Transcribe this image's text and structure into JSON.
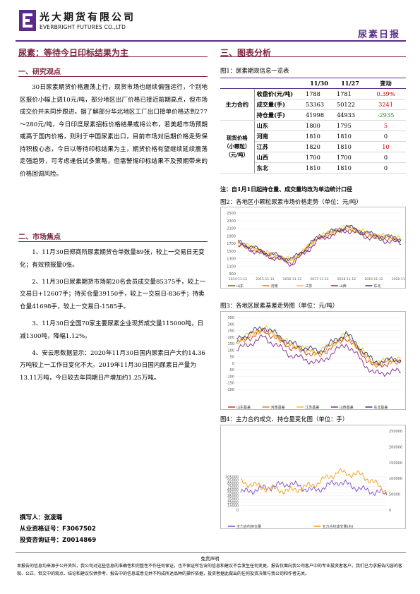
{
  "header": {
    "company_cn": "光大期货有限公司",
    "company_en": "EVERBRIGHT FUTURES CO.,LTD",
    "report_title": "尿素日报"
  },
  "left": {
    "main_title": "尿素：等待今日印标结果为主",
    "research_title": "一、研究观点",
    "research_text": "30日尿素期货价格震荡上行，现货市场也继续偏强运行，个别地区报价小幅上调10元/吨，部分地区出厂价格已接近前期高点，但市场成交价并未同步跟进。据了解部分华北地区工厂出口接单价格达到277～280元/吨，今日印度尿素招标价格结果或将公布，若美超市场预期或高于国内价格，则利于中国尿素出口，目前市场对后期价格走势保持积极心态，今日以等待印标结果为主，期货价格有望继续延续震荡走强趋势，可考虑逢低试多策略，但需警惕印标结果不及预期带来的价格回调风险。",
    "focus_title": "二、市场焦点",
    "focus_items": [
      "1、11月30日郑商所尿素期货仓单数量89张，较上一交易日无变化；有效预报量0张。",
      "2、11月30日尿素期货市场前20名会员成交量85375手，较上一交易日+12607手；持买仓量39150手，较上一交易日-836手；持卖仓量41698手，较上一交易日-1585手。",
      "3、11月30日全国70家主要尿素企业现货成交量115000吨，日减1300吨，降幅1.12%。",
      "4、安云思数据显示：2020年11月30日国内尿素日产大约14.36万吨较上一工作日变化不大。2019年11月30日国内尿素日产量为13.11万吨，今日较去年同期日产增加约1.25万吨。"
    ],
    "author_lines": [
      "撰写人：张凌璐",
      "从业资格证号：F3067502",
      "投资咨询证号：Z0014869"
    ]
  },
  "right": {
    "section_title": "三、图表分析",
    "table_caption": "图1：尿素期现信息一览表",
    "table": {
      "headers": [
        "",
        "",
        "11/30",
        "11/27",
        "变动"
      ],
      "group1": "主力合约",
      "group2": "现货价格（小颗粒）（元/吨）",
      "rows": [
        {
          "label": "收盘价(元/吨)",
          "a": "1788",
          "b": "1781",
          "c": "0.39%",
          "red": true
        },
        {
          "label": "成交量(手)",
          "a": "53363",
          "b": "50122",
          "c": "3241",
          "red": true
        },
        {
          "label": "持仓量(手)",
          "a": "41998",
          "b": "44933",
          "c": "-2935",
          "red": false
        },
        {
          "label": "山东",
          "a": "1800",
          "b": "1795",
          "c": "5",
          "red": true
        },
        {
          "label": "河南",
          "a": "1810",
          "b": "1810",
          "c": "0",
          "red": false
        },
        {
          "label": "江苏",
          "a": "1820",
          "b": "1810",
          "c": "10",
          "red": true
        },
        {
          "label": "山西",
          "a": "1700",
          "b": "1700",
          "c": "0",
          "red": false
        },
        {
          "label": "东北",
          "a": "1810",
          "b": "1810",
          "c": "0",
          "red": false
        }
      ]
    },
    "note": "注：自1月1日起持仓量、成交量均改为单边统计口径",
    "fig2_caption": "图2：各地区小颗粒尿素市场价格走势（单位：元/吨）",
    "fig3_caption": "图3：各地区尿素基差走势图（单位：元/吨）",
    "fig4_caption": "图4：主力合约成交、持仓量变化图（单位：手）"
  },
  "chart_data": [
    {
      "type": "line",
      "x": [
        "2014-11-12",
        "2015-11-12",
        "2016-11-12",
        "2017-11-12",
        "2018-11-12",
        "2019-11-12",
        "2020-11-12"
      ],
      "y_ticks": [
        "900",
        "1100",
        "1300",
        "1500",
        "1700",
        "1900",
        "2100",
        "2300",
        "2500"
      ],
      "ylim": [
        900,
        2500
      ],
      "series": [
        {
          "name": "山东",
          "values": [
            1700,
            1420,
            1200,
            1850,
            2100,
            1880,
            1790
          ]
        },
        {
          "name": "河南",
          "values": [
            1720,
            1440,
            1250,
            1870,
            2120,
            1900,
            1810
          ]
        },
        {
          "name": "江苏",
          "values": [
            1730,
            1450,
            1240,
            1880,
            2130,
            1910,
            1820
          ]
        },
        {
          "name": "山西",
          "values": [
            1650,
            1400,
            1150,
            1800,
            2050,
            1820,
            1700
          ]
        },
        {
          "name": "东北",
          "values": [
            1750,
            1460,
            1270,
            1890,
            2140,
            1920,
            1810
          ]
        }
      ]
    },
    {
      "type": "line",
      "y_ticks": [
        "-200",
        "-150",
        "-100",
        "-50",
        "0",
        "50",
        "100",
        "150",
        "200",
        "250",
        "300",
        "350"
      ],
      "ylim": [
        -200,
        350
      ],
      "series": [
        {
          "name": "山东基差",
          "values": [
            150,
            250,
            120,
            60,
            200,
            -20,
            20
          ]
        },
        {
          "name": "河南基差",
          "values": [
            160,
            260,
            130,
            70,
            210,
            -10,
            25
          ]
        },
        {
          "name": "江苏基差",
          "values": [
            170,
            270,
            140,
            80,
            220,
            0,
            30
          ]
        },
        {
          "name": "山西基差",
          "values": [
            100,
            200,
            60,
            0,
            150,
            -80,
            -60
          ]
        },
        {
          "name": "东北基差",
          "values": [
            180,
            280,
            150,
            90,
            230,
            10,
            30
          ]
        }
      ]
    },
    {
      "type": "line",
      "y_left_ticks": [
        "0",
        "15000",
        "25000",
        "35000",
        "45000",
        "55000",
        "65000",
        "75000",
        "85000",
        "95000",
        "105000"
      ],
      "y_right_ticks": [
        "0",
        "50000",
        "100000",
        "150000",
        "200000",
        "250000"
      ],
      "series": [
        {
          "name": "主力合约持仓量",
          "values": [
            55000,
            70000,
            85000,
            60000,
            90000,
            65000,
            50000
          ]
        },
        {
          "name": "主力合约成交量(右)",
          "values": [
            90000,
            70000,
            60000,
            80000,
            120000,
            110000,
            60000
          ]
        }
      ]
    }
  ],
  "footer": {
    "disclaimer_title": "免责声明",
    "disclaimer": "本报告的信息均来源于公开资料，我公司对这些信息的准确性和完整性不作任何保证，也不保证所包含的信息和建议不会发生任何变更，报告仅面向我公司客户中的专业投资者客户。我们已力求报告内容的客观、公正，但文中的观点、结论和建议仅供参考，报告中的信息或意见并不构成所述品种的操作依据，投资者据此做出的任何投资决策与我公司和作者无关。"
  }
}
